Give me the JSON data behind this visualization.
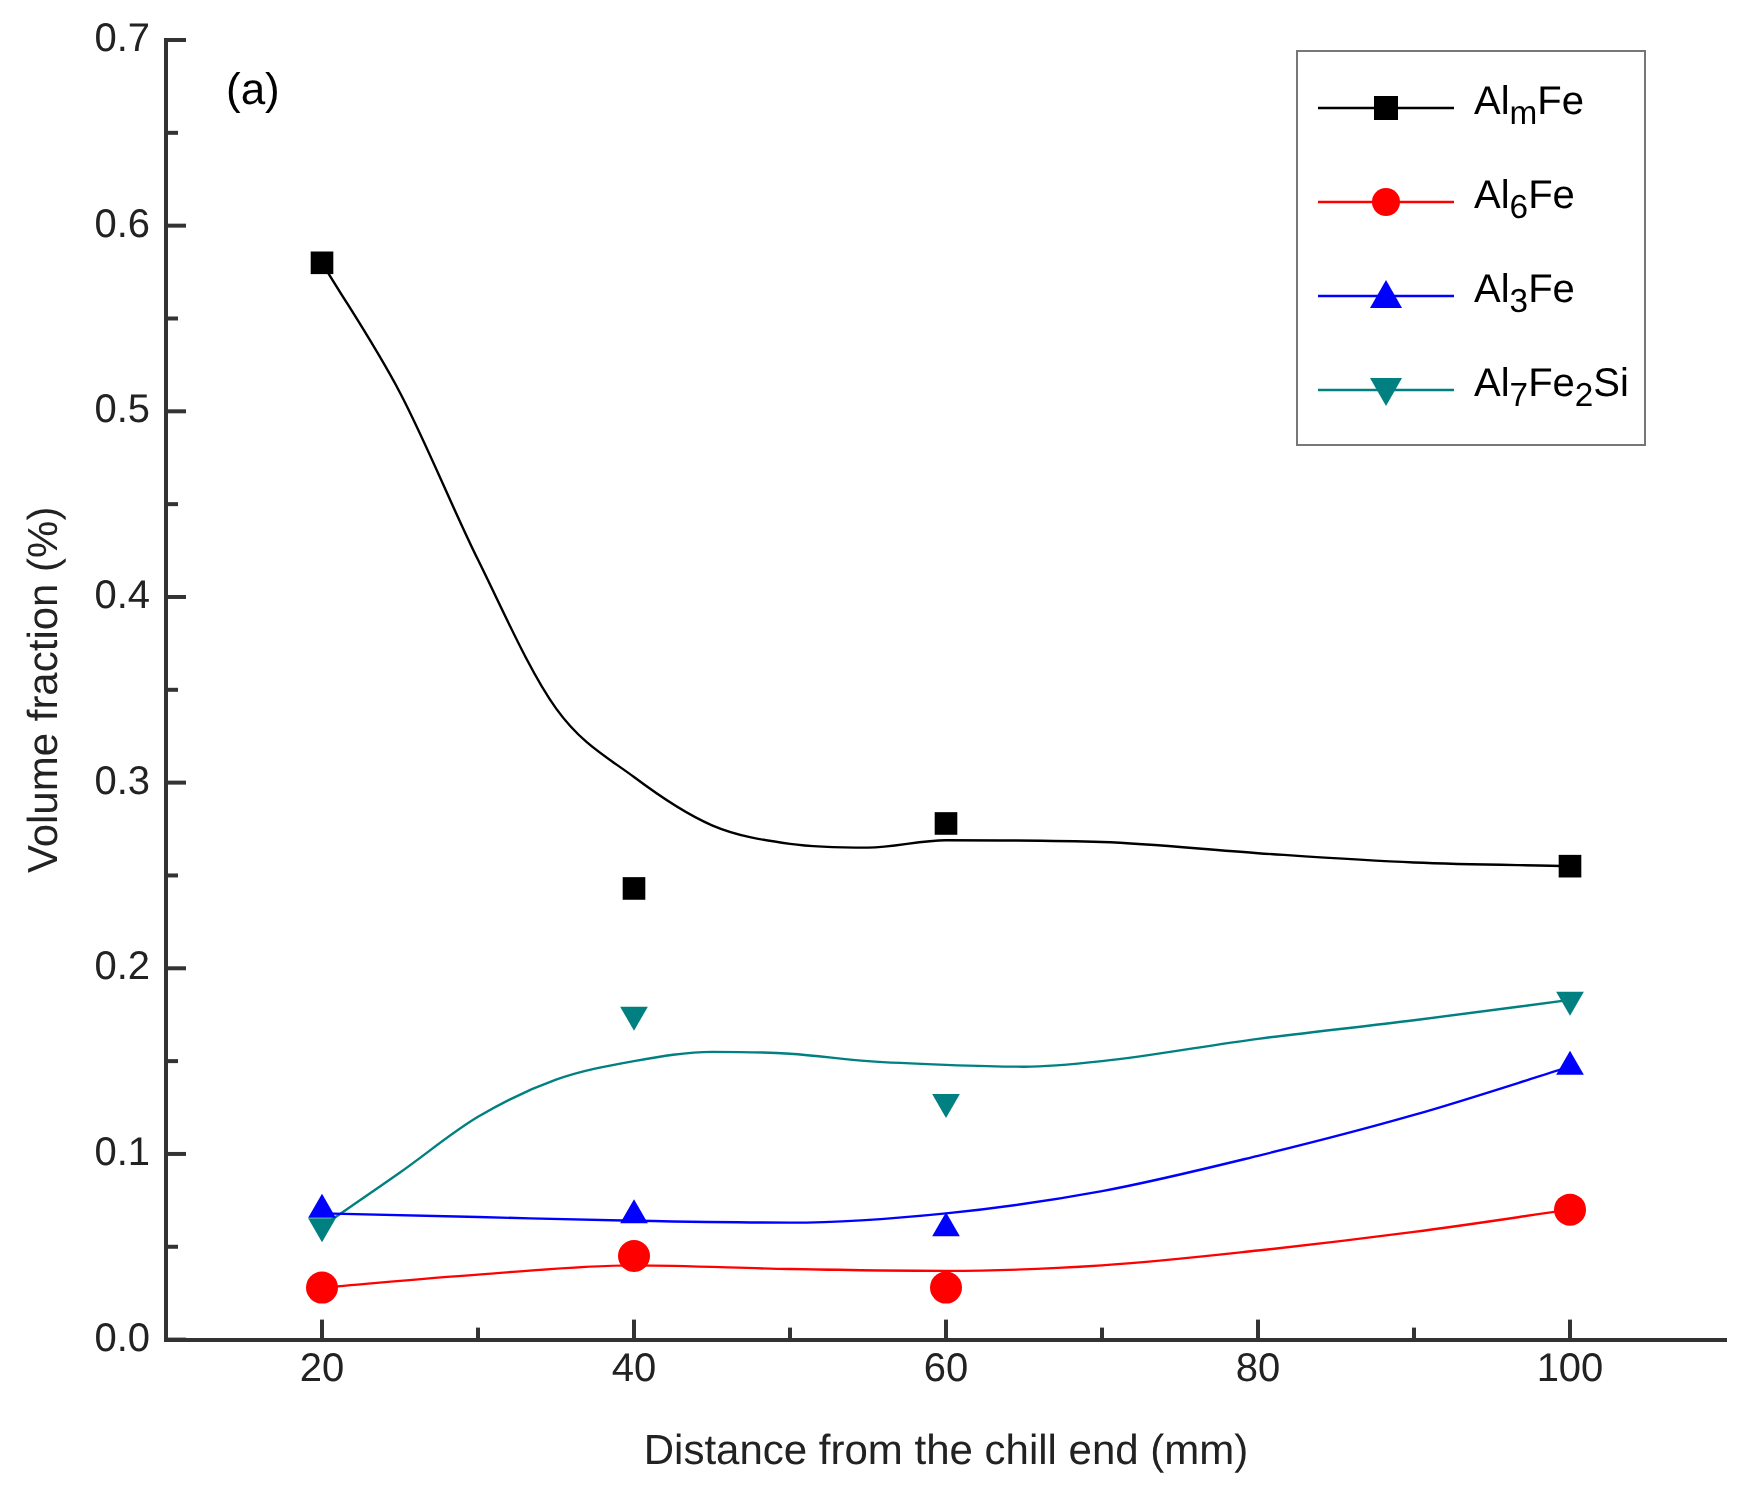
{
  "chart_data": {
    "type": "scatter",
    "xlabel": "Distance from the chill end (mm)",
    "ylabel": "Volume fraction (%)",
    "annotations": [
      "(a)"
    ],
    "legend": "top right",
    "xlim": [
      10,
      110
    ],
    "xticks": [
      {
        "value": 20,
        "label": "20"
      },
      {
        "value": 30,
        "label": null
      },
      {
        "value": 40,
        "label": "40"
      },
      {
        "value": 50,
        "label": null
      },
      {
        "value": 60,
        "label": "60"
      },
      {
        "value": 70,
        "label": null
      },
      {
        "value": 80,
        "label": "80"
      },
      {
        "value": 90,
        "label": null
      },
      {
        "value": 100,
        "label": "100"
      }
    ],
    "ylim": [
      0,
      0.7
    ],
    "yticks": [
      {
        "value": 0,
        "label": "0.0"
      },
      {
        "value": 0.05,
        "label": null
      },
      0.1,
      {
        "value": 0.15,
        "label": null
      },
      0.2,
      {
        "value": 0.25,
        "label": null
      },
      0.3,
      {
        "value": 0.35,
        "label": null
      },
      0.4,
      {
        "value": 0.45,
        "label": null
      },
      0.5,
      {
        "value": 0.55,
        "label": null
      },
      0.6,
      {
        "value": 0.65,
        "label": null
      },
      0.7
    ],
    "x": [
      20,
      40,
      60,
      100
    ],
    "series": [
      {
        "name": "Al$_{m}$Fe",
        "marker": "square",
        "color": "#000000",
        "values": [
          0.58,
          0.243,
          0.278,
          0.255
        ]
      },
      {
        "name": "Al$_{6}$Fe",
        "marker": "circle",
        "color": "#ff0000",
        "values": [
          0.028,
          0.045,
          0.028,
          0.07
        ]
      },
      {
        "name": "Al$_{3}$Fe",
        "marker": "triangle",
        "color": "#0000ff",
        "values": [
          0.07,
          0.067,
          0.06,
          0.147
        ]
      },
      {
        "name": "Al$_{7}$Fe$_{2}$Si",
        "marker": "triangle-down",
        "color": "#008080",
        "values": [
          0.061,
          0.175,
          0.128,
          0.183
        ]
      },
      {
        "type": "line",
        "marker": "none",
        "color": "#000000",
        "x": [
          20,
          25,
          30,
          35,
          40,
          45,
          50,
          55,
          60,
          70,
          80,
          90,
          100
        ],
        "values": [
          0.58,
          0.51,
          0.42,
          0.34,
          0.303,
          0.277,
          0.267,
          0.265,
          0.269,
          0.268,
          0.262,
          0.257,
          0.255
        ]
      },
      {
        "type": "line",
        "marker": "none",
        "color": "#ff0000",
        "x": [
          20,
          30,
          40,
          50,
          60,
          70,
          80,
          90,
          100
        ],
        "values": [
          0.028,
          0.035,
          0.04,
          0.038,
          0.037,
          0.04,
          0.048,
          0.058,
          0.07
        ]
      },
      {
        "type": "line",
        "marker": "none",
        "color": "#0000ff",
        "x": [
          20,
          30,
          40,
          50,
          60,
          70,
          80,
          90,
          100
        ],
        "values": [
          0.068,
          0.066,
          0.064,
          0.063,
          0.068,
          0.08,
          0.099,
          0.121,
          0.147
        ]
      },
      {
        "type": "line",
        "marker": "none",
        "color": "#008080",
        "x": [
          20,
          25,
          30,
          35,
          40,
          45,
          50,
          55,
          60,
          65,
          70,
          80,
          90,
          100
        ],
        "values": [
          0.061,
          0.09,
          0.12,
          0.14,
          0.15,
          0.155,
          0.154,
          0.15,
          0.148,
          0.147,
          0.15,
          0.162,
          0.172,
          0.183
        ]
      }
    ]
  }
}
